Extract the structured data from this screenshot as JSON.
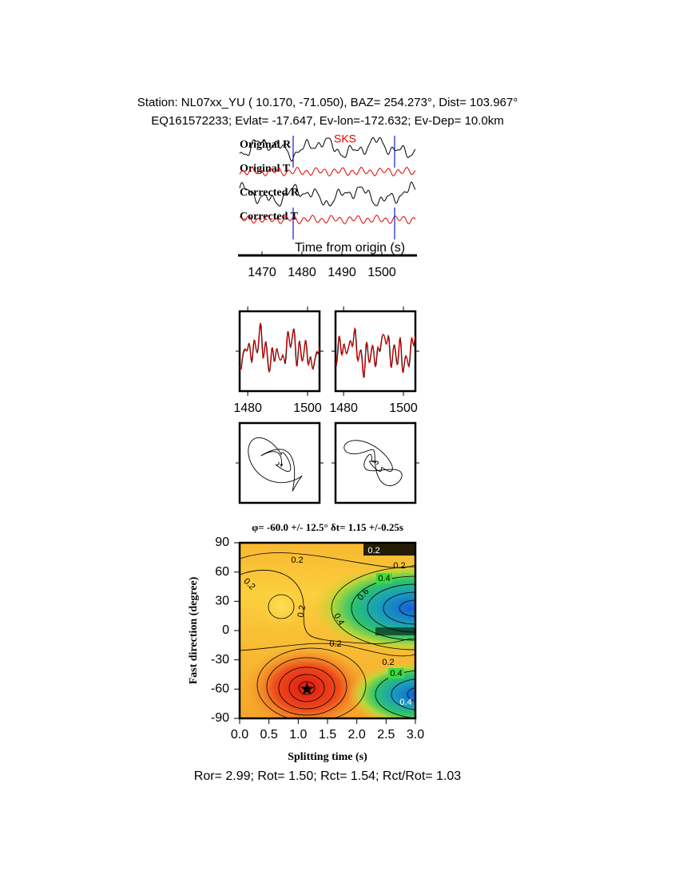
{
  "header": {
    "station": "Station: NL07xx_YU (  10.170,  -71.050), BAZ=  254.273°, Dist=  103.967°",
    "event": "EQ161572233; Evlat= -17.647, Ev-lon=-172.632; Ev-Dep= 10.0km"
  },
  "traces": {
    "labels": [
      "Original R",
      "Original T",
      "Corrected R",
      "Corrected T"
    ],
    "phase": "SKS",
    "xlabel": "Time from origin (s)",
    "xlim": [
      1464.4,
      1508.4
    ],
    "xticks": [
      1470,
      1480,
      1490,
      1500
    ],
    "window": [
      1477.8,
      1503.2
    ]
  },
  "waveform_panels": {
    "xlim": [
      1477.3,
      1504
    ],
    "xticks": [
      1480,
      1500
    ]
  },
  "contour": {
    "title": "φ= -60.0 +/- 12.5° δt= 1.15 +/-0.25s",
    "xlabel": "Splitting time (s)",
    "ylabel": "Fast direction (degree)",
    "xlim": [
      0,
      3
    ],
    "ylim": [
      -90,
      90
    ],
    "xticks": [
      {
        "value": 0,
        "label": "0.0"
      },
      0.5,
      {
        "value": 1,
        "label": "1.0"
      },
      1.5,
      {
        "value": 2,
        "label": "2.0"
      },
      2.5,
      {
        "value": 3,
        "label": "3.0"
      }
    ],
    "yticks": [
      90,
      60,
      30,
      0,
      -30,
      -60,
      -90
    ],
    "best": {
      "dt": 1.15,
      "phi": -60
    },
    "contour_labels": [
      "0.2",
      "0.2",
      "0.2",
      "0.2",
      "0.2",
      "0.2",
      "0.4",
      "0.4",
      "0.4",
      "0.6",
      "0.2",
      "0.4"
    ]
  },
  "footer": "Ror= 2.99; Rot= 1.50; Rct= 1.54; Rct/Rot= 1.03"
}
